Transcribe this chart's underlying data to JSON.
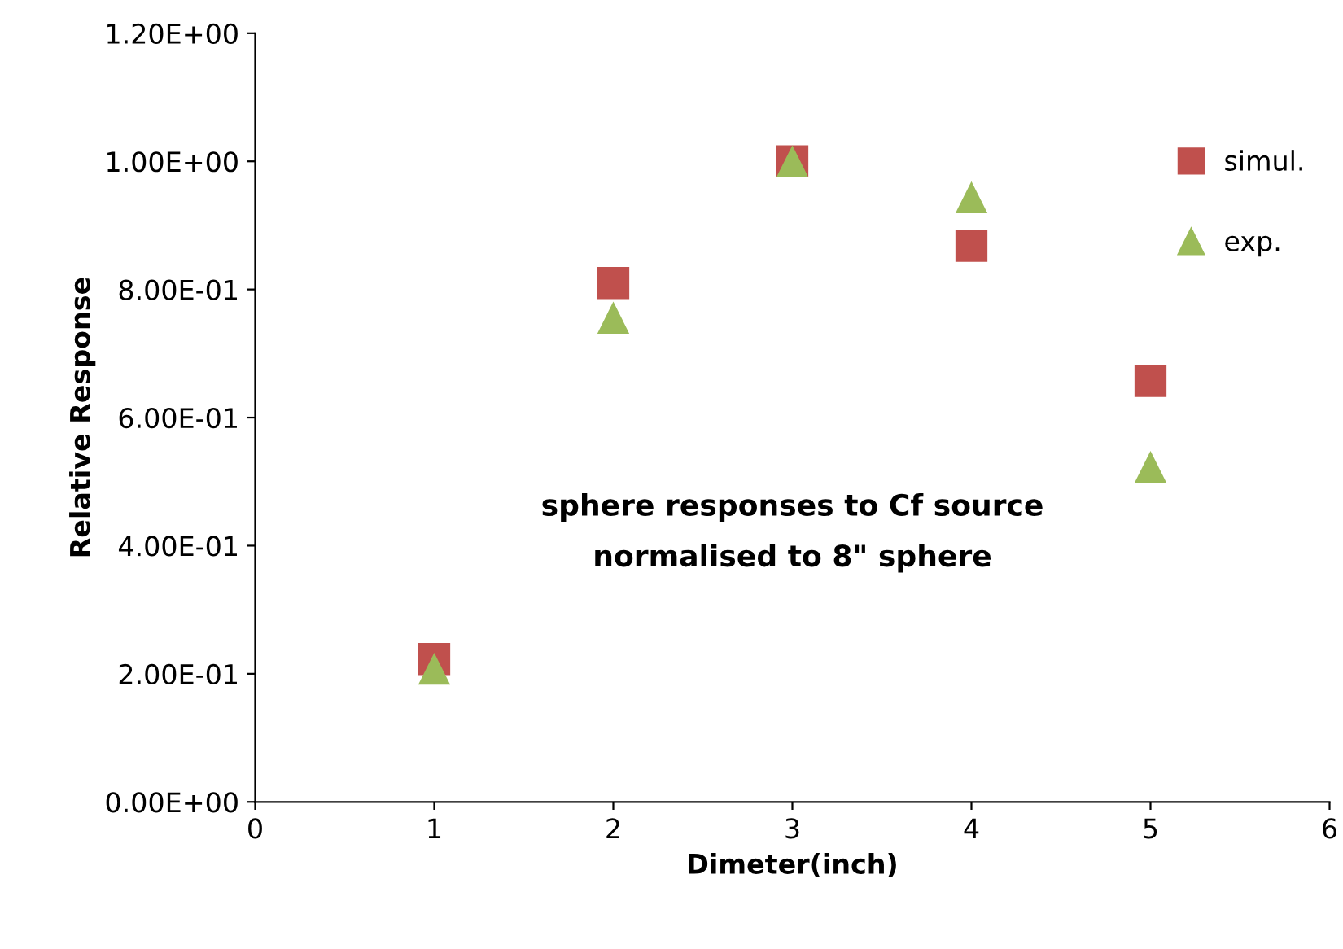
{
  "chart_data": {
    "type": "scatter",
    "xlabel": "Dimeter(inch)",
    "ylabel": "Relative Response",
    "x": [
      1,
      2,
      3,
      4,
      5
    ],
    "series": [
      {
        "name": "simul.",
        "color": "#c0504d",
        "marker": "square",
        "values": [
          0.223,
          0.81,
          1.0,
          0.868,
          0.657
        ]
      },
      {
        "name": "exp.",
        "color": "#9bbb59",
        "marker": "triangle",
        "values": [
          0.208,
          0.756,
          1.0,
          0.944,
          0.523
        ]
      }
    ],
    "xlim": [
      0,
      6
    ],
    "xticks": [
      0,
      1,
      2,
      3,
      4,
      5,
      6
    ],
    "ylim": [
      0,
      1.2
    ],
    "yticks": [
      {
        "value": 0,
        "label": "0.00E+00"
      },
      {
        "value": 0.2,
        "label": "2.00E-01"
      },
      {
        "value": 0.4,
        "label": "4.00E-01"
      },
      {
        "value": 0.6,
        "label": "6.00E-01"
      },
      {
        "value": 0.8,
        "label": "8.00E-01"
      },
      {
        "value": 1.0,
        "label": "1.00E+00"
      },
      {
        "value": 1.2,
        "label": "1.20E+00"
      }
    ],
    "annotations": [
      {
        "text": "sphere responses to Cf source\nnormalised to 8\" sphere"
      }
    ],
    "grid": false,
    "legend": "top right"
  }
}
